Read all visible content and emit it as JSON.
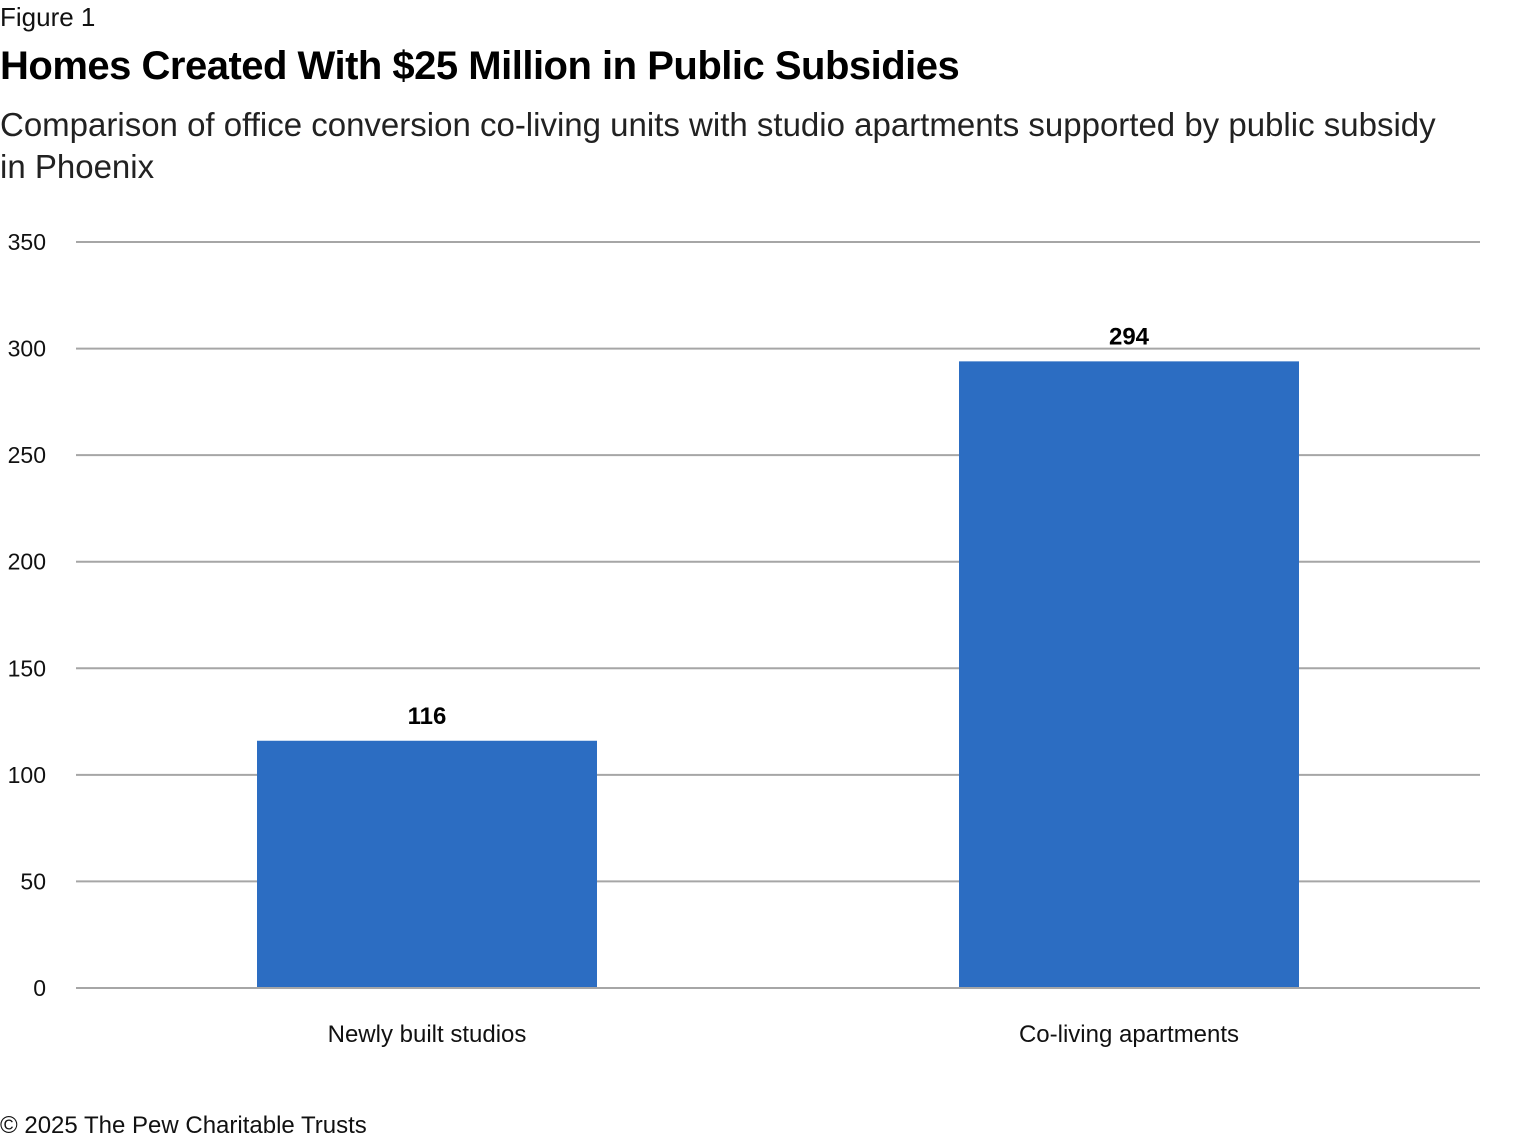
{
  "figure_label": "Figure 1",
  "footer": "© 2025 The Pew Charitable Trusts",
  "chart_data": {
    "type": "bar",
    "title": "Homes Created With $25 Million in Public Subsidies",
    "subtitle": "Comparison of office conversion co-living units with studio apartments supported by public subsidy in Phoenix",
    "categories": [
      "Newly built studios",
      "Co-living apartments"
    ],
    "values": [
      116,
      294
    ],
    "data_labels": [
      "116",
      "294"
    ],
    "xlabel": "",
    "ylabel": "",
    "ylim": [
      0,
      350
    ],
    "yticks": [
      0,
      50,
      100,
      150,
      200,
      250,
      300,
      350
    ],
    "grid": true,
    "legend": "none",
    "colors": {
      "bar": "#2c6dc2",
      "grid": "#a6a6a6"
    }
  }
}
